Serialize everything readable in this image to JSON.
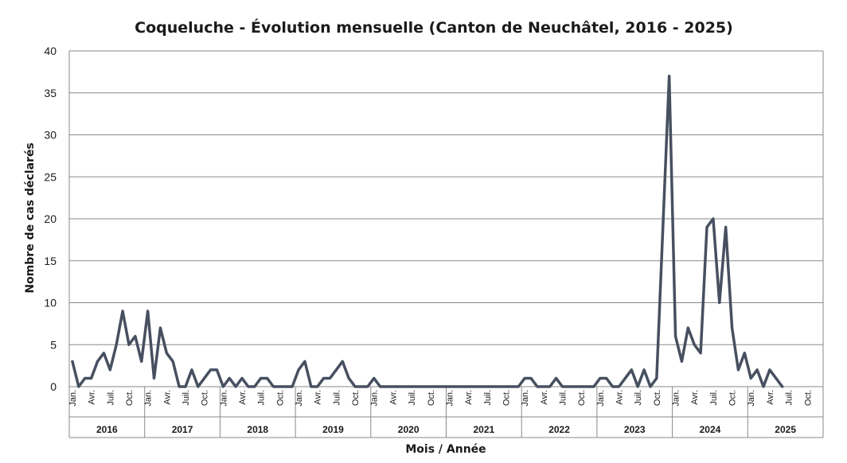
{
  "chart_data": {
    "type": "line",
    "title": "Coqueluche - Évolution mensuelle (Canton de Neuchâtel, 2016 - 2025)",
    "xlabel": "Mois / Année",
    "ylabel": "Nombre de cas déclarés",
    "ylim": [
      0,
      40
    ],
    "yticks": [
      0,
      5,
      10,
      15,
      20,
      25,
      30,
      35,
      40
    ],
    "grid": true,
    "years": [
      "2016",
      "2017",
      "2018",
      "2019",
      "2020",
      "2021",
      "2022",
      "2023",
      "2024",
      "2025"
    ],
    "month_labels": [
      "Jan.",
      "Avr.",
      "Juil.",
      "Oct."
    ],
    "series": [
      {
        "color": "#475060",
        "values": [
          3,
          0,
          1,
          1,
          3,
          4,
          2,
          5,
          9,
          5,
          6,
          3,
          9,
          1,
          7,
          4,
          3,
          0,
          0,
          2,
          0,
          1,
          2,
          2,
          0,
          1,
          0,
          1,
          0,
          0,
          1,
          1,
          0,
          0,
          0,
          0,
          2,
          3,
          0,
          0,
          1,
          1,
          2,
          3,
          1,
          0,
          0,
          0,
          1,
          0,
          0,
          0,
          0,
          0,
          0,
          0,
          0,
          0,
          0,
          0,
          0,
          0,
          0,
          0,
          0,
          0,
          0,
          0,
          0,
          0,
          0,
          0,
          1,
          1,
          0,
          0,
          0,
          1,
          0,
          0,
          0,
          0,
          0,
          0,
          1,
          1,
          0,
          0,
          1,
          2,
          0,
          2,
          0,
          1,
          19,
          37,
          6,
          3,
          7,
          5,
          4,
          19,
          20,
          10,
          19,
          7,
          2,
          4,
          1,
          2,
          0,
          2,
          1,
          0
        ]
      }
    ]
  }
}
